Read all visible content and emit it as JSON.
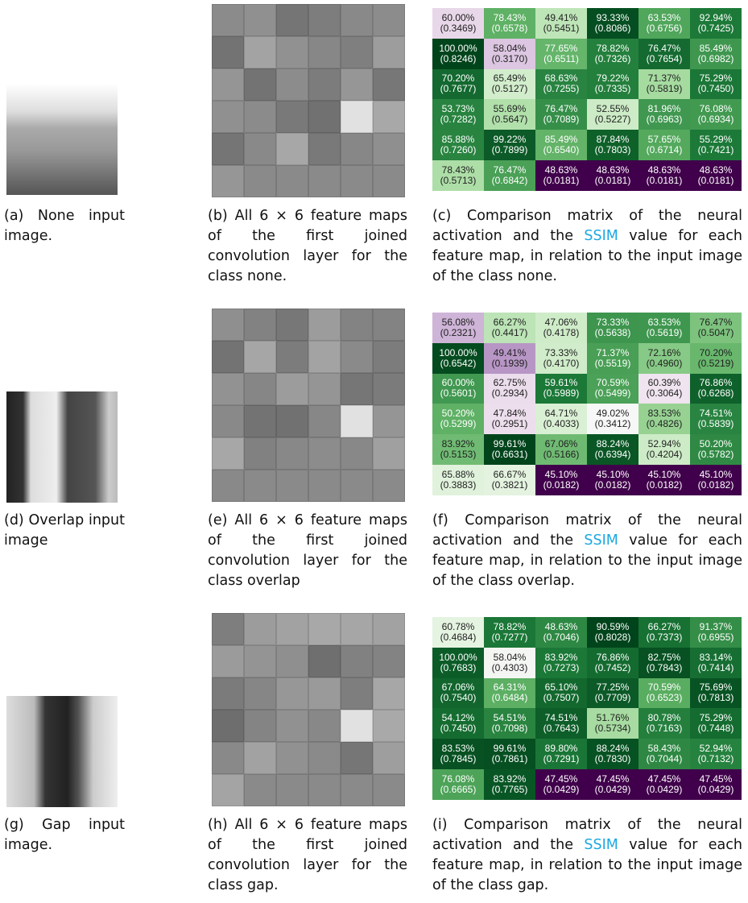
{
  "panels": [
    {
      "input_caption": "(a) None input image.",
      "maps_caption": "(b) All 6 × 6 feature maps of the first joined convolution layer for the class none.",
      "matrix_caption": [
        "(c) Comparison matrix of the neural activation and the ",
        "SSIM",
        " value for each feature map, in relation to the input image of the class none."
      ],
      "matrix": [
        [
          [
            "60.00%",
            "(0.3469)"
          ],
          [
            "78.43%",
            "(0.6578)"
          ],
          [
            "49.41%",
            "(0.5451)"
          ],
          [
            "93.33%",
            "(0.8086)"
          ],
          [
            "63.53%",
            "(0.6756)"
          ],
          [
            "92.94%",
            "(0.7425)"
          ]
        ],
        [
          [
            "100.00%",
            "(0.8246)"
          ],
          [
            "58.04%",
            "(0.3170)"
          ],
          [
            "77.65%",
            "(0.6511)"
          ],
          [
            "78.82%",
            "(0.7326)"
          ],
          [
            "76.47%",
            "(0.7654)"
          ],
          [
            "85.49%",
            "(0.6982)"
          ]
        ],
        [
          [
            "70.20%",
            "(0.7677)"
          ],
          [
            "65.49%",
            "(0.5127)"
          ],
          [
            "68.63%",
            "(0.7255)"
          ],
          [
            "79.22%",
            "(0.7335)"
          ],
          [
            "71.37%",
            "(0.5819)"
          ],
          [
            "75.29%",
            "(0.7450)"
          ]
        ],
        [
          [
            "53.73%",
            "(0.7282)"
          ],
          [
            "55.69%",
            "(0.5647)"
          ],
          [
            "76.47%",
            "(0.7089)"
          ],
          [
            "52.55%",
            "(0.5227)"
          ],
          [
            "81.96%",
            "(0.6963)"
          ],
          [
            "76.08%",
            "(0.6934)"
          ]
        ],
        [
          [
            "85.88%",
            "(0.7260)"
          ],
          [
            "99.22%",
            "(0.7899)"
          ],
          [
            "85.49%",
            "(0.6540)"
          ],
          [
            "87.84%",
            "(0.7803)"
          ],
          [
            "57.65%",
            "(0.6714)"
          ],
          [
            "55.29%",
            "(0.7421)"
          ]
        ],
        [
          [
            "78.43%",
            "(0.5713)"
          ],
          [
            "76.47%",
            "(0.6842)"
          ],
          [
            "48.63%",
            "(0.0181)"
          ],
          [
            "48.63%",
            "(0.0181)"
          ],
          [
            "48.63%",
            "(0.0181)"
          ],
          [
            "48.63%",
            "(0.0181)"
          ]
        ]
      ]
    },
    {
      "input_caption": "(d) Overlap input image",
      "maps_caption": "(e) All 6 × 6 feature maps of the first joined convolution layer for the class overlap",
      "matrix_caption": [
        "(f) Comparison matrix of the neural activation and the ",
        "SSIM",
        " value for each feature map, in relation to the input image of the class overlap."
      ],
      "matrix": [
        [
          [
            "56.08%",
            "(0.2321)"
          ],
          [
            "66.27%",
            "(0.4417)"
          ],
          [
            "47.06%",
            "(0.4178)"
          ],
          [
            "73.33%",
            "(0.5638)"
          ],
          [
            "63.53%",
            "(0.5619)"
          ],
          [
            "76.47%",
            "(0.5047)"
          ]
        ],
        [
          [
            "100.00%",
            "(0.6542)"
          ],
          [
            "49.41%",
            "(0.1939)"
          ],
          [
            "73.33%",
            "(0.4170)"
          ],
          [
            "71.37%",
            "(0.5519)"
          ],
          [
            "72.16%",
            "(0.4960)"
          ],
          [
            "70.20%",
            "(0.5219)"
          ]
        ],
        [
          [
            "60.00%",
            "(0.5601)"
          ],
          [
            "62.75%",
            "(0.2934)"
          ],
          [
            "59.61%",
            "(0.5989)"
          ],
          [
            "70.59%",
            "(0.5499)"
          ],
          [
            "60.39%",
            "(0.3064)"
          ],
          [
            "76.86%",
            "(0.6268)"
          ]
        ],
        [
          [
            "50.20%",
            "(0.5299)"
          ],
          [
            "47.84%",
            "(0.2951)"
          ],
          [
            "64.71%",
            "(0.4033)"
          ],
          [
            "49.02%",
            "(0.3412)"
          ],
          [
            "83.53%",
            "(0.4826)"
          ],
          [
            "74.51%",
            "(0.5839)"
          ]
        ],
        [
          [
            "83.92%",
            "(0.5153)"
          ],
          [
            "99.61%",
            "(0.6631)"
          ],
          [
            "67.06%",
            "(0.5166)"
          ],
          [
            "88.24%",
            "(0.6394)"
          ],
          [
            "52.94%",
            "(0.4204)"
          ],
          [
            "50.20%",
            "(0.5782)"
          ]
        ],
        [
          [
            "65.88%",
            "(0.3883)"
          ],
          [
            "66.67%",
            "(0.3821)"
          ],
          [
            "45.10%",
            "(0.0182)"
          ],
          [
            "45.10%",
            "(0.0182)"
          ],
          [
            "45.10%",
            "(0.0182)"
          ],
          [
            "45.10%",
            "(0.0182)"
          ]
        ]
      ]
    },
    {
      "input_caption": "(g) Gap input image.",
      "maps_caption": "(h) All 6 × 6 feature maps of the first joined convolution layer for the class gap.",
      "matrix_caption": [
        "(i) Comparison matrix of the neural activation and the ",
        "SSIM",
        " value for each feature map, in relation to the input image of the class gap."
      ],
      "matrix": [
        [
          [
            "60.78%",
            "(0.4684)"
          ],
          [
            "78.82%",
            "(0.7277)"
          ],
          [
            "48.63%",
            "(0.7046)"
          ],
          [
            "90.59%",
            "(0.8028)"
          ],
          [
            "66.27%",
            "(0.7373)"
          ],
          [
            "91.37%",
            "(0.6955)"
          ]
        ],
        [
          [
            "100.00%",
            "(0.7683)"
          ],
          [
            "58.04%",
            "(0.4303)"
          ],
          [
            "83.92%",
            "(0.7273)"
          ],
          [
            "76.86%",
            "(0.7452)"
          ],
          [
            "82.75%",
            "(0.7843)"
          ],
          [
            "83.14%",
            "(0.7414)"
          ]
        ],
        [
          [
            "67.06%",
            "(0.7540)"
          ],
          [
            "64.31%",
            "(0.6484)"
          ],
          [
            "65.10%",
            "(0.7507)"
          ],
          [
            "77.25%",
            "(0.7709)"
          ],
          [
            "70.59%",
            "(0.6523)"
          ],
          [
            "75.69%",
            "(0.7813)"
          ]
        ],
        [
          [
            "54.12%",
            "(0.7450)"
          ],
          [
            "54.51%",
            "(0.7098)"
          ],
          [
            "74.51%",
            "(0.7643)"
          ],
          [
            "51.76%",
            "(0.5734)"
          ],
          [
            "80.78%",
            "(0.7163)"
          ],
          [
            "75.29%",
            "(0.7448)"
          ]
        ],
        [
          [
            "83.53%",
            "(0.7845)"
          ],
          [
            "99.61%",
            "(0.7861)"
          ],
          [
            "89.80%",
            "(0.7291)"
          ],
          [
            "88.24%",
            "(0.7830)"
          ],
          [
            "58.43%",
            "(0.7044)"
          ],
          [
            "52.94%",
            "(0.7132)"
          ]
        ],
        [
          [
            "76.08%",
            "(0.6665)"
          ],
          [
            "83.92%",
            "(0.7765)"
          ],
          [
            "47.45%",
            "(0.0429)"
          ],
          [
            "47.45%",
            "(0.0429)"
          ],
          [
            "47.45%",
            "(0.0429)"
          ],
          [
            "47.45%",
            "(0.0429)"
          ]
        ]
      ]
    }
  ]
}
